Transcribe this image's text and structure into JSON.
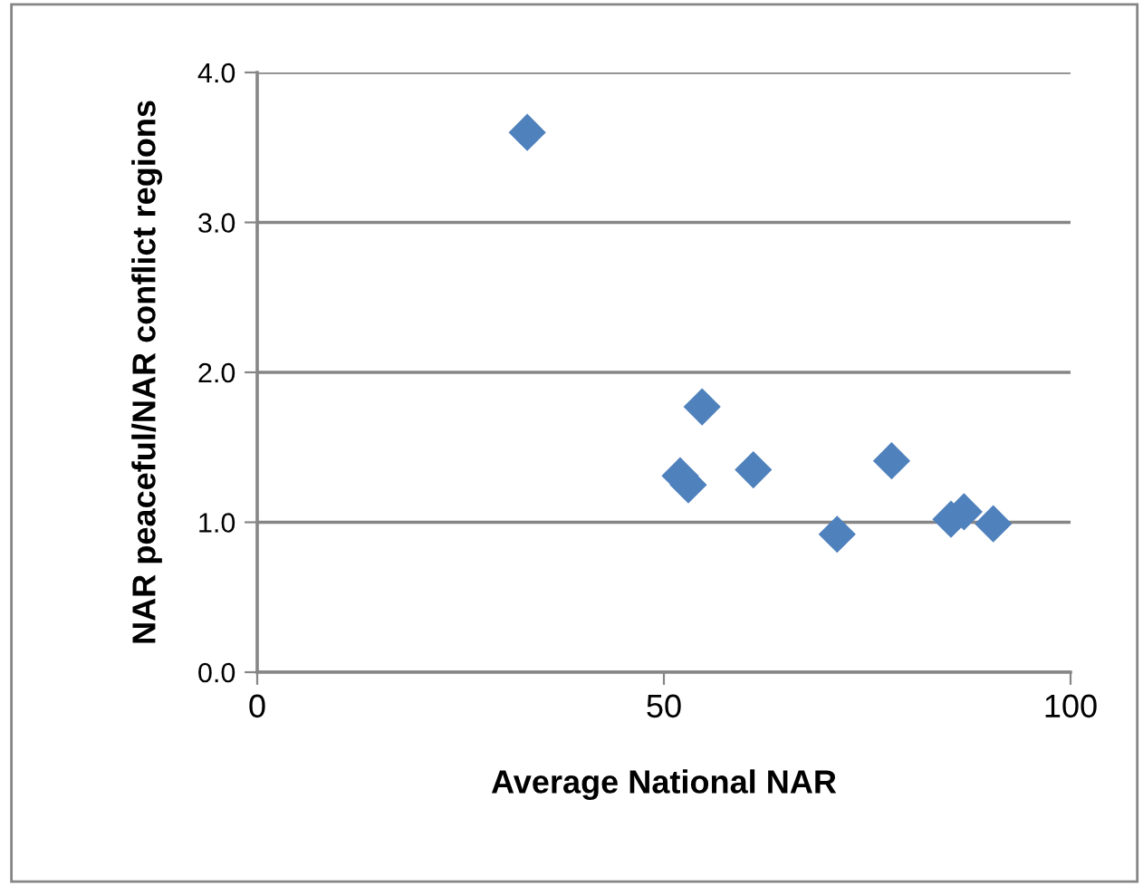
{
  "chart_data": {
    "type": "scatter",
    "xlabel": "Average National NAR",
    "ylabel": "NAR peaceful/NAR conflict regions",
    "x": [
      33.2,
      54.7,
      52.0,
      53.0,
      61.0,
      71.3,
      78.0,
      85.3,
      86.9,
      90.5
    ],
    "values": [
      3.6,
      1.77,
      1.31,
      1.25,
      1.35,
      0.92,
      1.41,
      1.02,
      1.07,
      0.99
    ],
    "color": "#4f81bd",
    "marker": "diamond",
    "xlim": [
      0,
      100
    ],
    "xticks": [
      0,
      50,
      100
    ],
    "ylim": [
      0,
      4
    ],
    "yticks": [
      {
        "value": 0,
        "label": "0.0"
      },
      {
        "value": 1,
        "label": "1.0"
      },
      {
        "value": 2,
        "label": "2.0"
      },
      {
        "value": 3,
        "label": "3.0"
      },
      {
        "value": 4,
        "label": "4.0"
      }
    ],
    "grid": "y",
    "legend": false
  }
}
